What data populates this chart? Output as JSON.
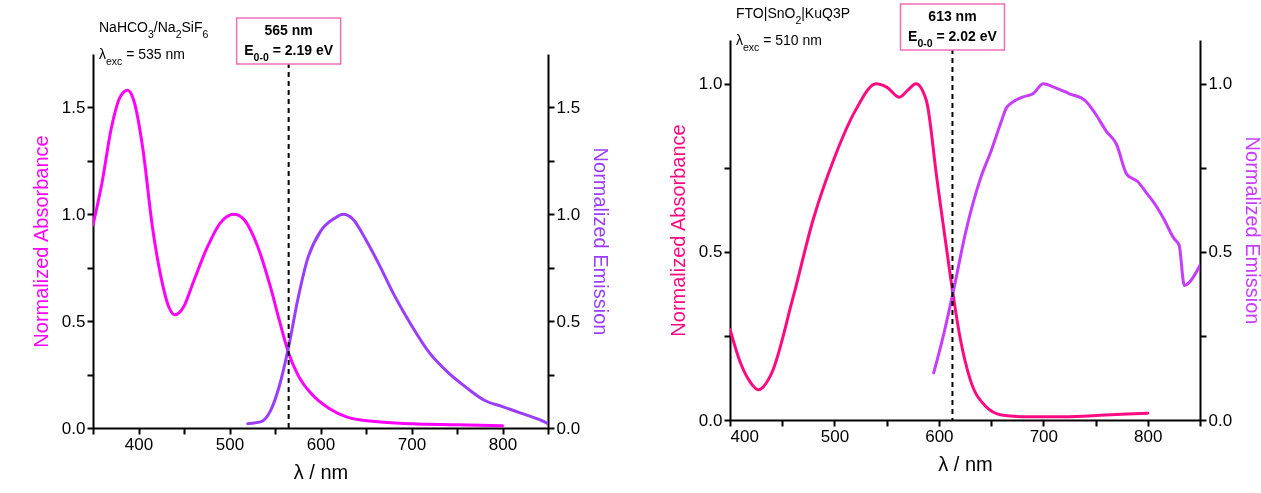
{
  "chart_data": [
    {
      "type": "line",
      "xlabel": "λ / nm",
      "ylabel": "Normalized Absorbance",
      "y2label": "Normalized Emission",
      "xlim": [
        350,
        850
      ],
      "xticks": [
        {
          "value": 350,
          "label": null
        },
        400,
        {
          "value": 450,
          "label": null
        },
        500,
        {
          "value": 550,
          "label": null
        },
        600,
        {
          "value": 650,
          "label": null
        },
        700,
        {
          "value": 750,
          "label": null
        },
        800,
        {
          "value": 850,
          "label": null
        }
      ],
      "ylim": [
        0,
        1.75
      ],
      "yticks": [
        {
          "value": 0,
          "label": "0.0"
        },
        {
          "value": 0.25,
          "label": null
        },
        {
          "value": 0.5,
          "label": "0.5"
        },
        {
          "value": 0.75,
          "label": null
        },
        {
          "value": 1,
          "label": "1.0"
        },
        {
          "value": 1.25,
          "label": null
        },
        {
          "value": 1.5,
          "label": "1.5"
        }
      ],
      "y2lim": [
        0,
        1.75
      ],
      "y2ticks": [
        {
          "value": 0,
          "label": "0.0"
        },
        {
          "value": 0.25,
          "label": null
        },
        {
          "value": 0.5,
          "label": "0.5"
        },
        {
          "value": 0.75,
          "label": null
        },
        {
          "value": 1,
          "label": "1.0"
        },
        {
          "value": 1.25,
          "label": null
        },
        {
          "value": 1.5,
          "label": "1.5"
        }
      ],
      "annotations": [
        "NaHCO$_{3}$/Na$_{2}$SiF$_{6}$",
        "λ$_{exc}$ = 535 nm",
        {
          "text": "E$_{0-0}$ = 2.19 eV",
          "x": 565
        }
      ],
      "ref_lines": [
        {
          "axis": "x",
          "value": 565,
          "label": "565 nm",
          "line_style": "dashed"
        }
      ],
      "series": [
        {
          "color": "#ff00ff",
          "x": [
            350,
            360,
            370,
            380,
            388,
            395,
            405,
            415,
            425,
            433,
            440,
            450,
            460,
            475,
            490,
            505,
            515,
            530,
            545,
            555,
            565,
            575,
            590,
            610,
            630,
            660,
            700,
            750,
            800
          ],
          "values": [
            0.95,
            1.15,
            1.4,
            1.55,
            1.58,
            1.53,
            1.3,
            0.95,
            0.7,
            0.57,
            0.53,
            0.57,
            0.68,
            0.84,
            0.96,
            1.0,
            0.98,
            0.86,
            0.66,
            0.5,
            0.35,
            0.25,
            0.16,
            0.09,
            0.05,
            0.03,
            0.02,
            0.015,
            0.01
          ]
        },
        {
          "color": "#9b3dff",
          "axis": "y2",
          "x": [
            520,
            535,
            545,
            555,
            565,
            575,
            585,
            600,
            615,
            625,
            635,
            650,
            665,
            680,
            700,
            720,
            740,
            760,
            780,
            800,
            820,
            840,
            850
          ],
          "values": [
            0.02,
            0.03,
            0.08,
            0.2,
            0.38,
            0.6,
            0.78,
            0.92,
            0.98,
            1.0,
            0.98,
            0.88,
            0.76,
            0.63,
            0.48,
            0.35,
            0.26,
            0.19,
            0.13,
            0.1,
            0.07,
            0.04,
            0.02
          ]
        }
      ]
    },
    {
      "type": "line",
      "xlabel": "λ / nm",
      "ylabel": "Normalized Absorbance",
      "y2label": "Normalized Emission",
      "xlim": [
        400,
        850
      ],
      "xticks": [
        400,
        {
          "value": 450,
          "label": null
        },
        500,
        {
          "value": 550,
          "label": null
        },
        600,
        {
          "value": 650,
          "label": null
        },
        700,
        {
          "value": 750,
          "label": null
        },
        800,
        {
          "value": 850,
          "label": null
        }
      ],
      "ylim": [
        0,
        1.13
      ],
      "yticks": [
        {
          "value": 0,
          "label": "0.0"
        },
        {
          "value": 0.25,
          "label": null
        },
        0.5,
        {
          "value": 0.75,
          "label": null
        },
        {
          "value": 1,
          "label": "1.0"
        }
      ],
      "y2lim": [
        0,
        1.13
      ],
      "y2ticks": [
        {
          "value": 0,
          "label": "0.0"
        },
        {
          "value": 0.25,
          "label": null
        },
        0.5,
        {
          "value": 0.75,
          "label": null
        },
        {
          "value": 1,
          "label": "1.0"
        }
      ],
      "annotations": [
        "FTO|SnO$_{2}$|KuQ3P",
        "λ$_{exc}$ = 510 nm",
        {
          "text": "E$_{0-0}$ = 2.02 eV",
          "x": 613
        }
      ],
      "ref_lines": [
        {
          "axis": "x",
          "value": 613,
          "label": "613 nm",
          "line_style": "dashed"
        }
      ],
      "series": [
        {
          "color": "#ff0a82",
          "x": [
            400,
            410,
            420,
            427,
            440,
            460,
            480,
            500,
            520,
            540,
            550,
            562,
            570,
            578,
            588,
            598,
            610,
            620,
            630,
            645,
            660,
            680,
            720,
            760,
            800
          ],
          "values": [
            0.27,
            0.17,
            0.11,
            0.09,
            0.14,
            0.36,
            0.6,
            0.78,
            0.92,
            1.0,
            0.99,
            0.96,
            0.98,
            1.0,
            0.95,
            0.72,
            0.45,
            0.25,
            0.12,
            0.04,
            0.015,
            0.01,
            0.01,
            0.015,
            0.02
          ]
        },
        {
          "color": "#c83cff",
          "axis": "y2",
          "x": [
            595,
            605,
            615,
            625,
            640,
            650,
            660,
            665,
            680,
            690,
            700,
            710,
            725,
            740,
            750,
            760,
            770,
            780,
            790,
            800,
            805,
            815,
            825,
            830,
            835,
            840,
            850
          ],
          "values": [
            0.14,
            0.26,
            0.4,
            0.55,
            0.72,
            0.8,
            0.89,
            0.93,
            0.96,
            0.97,
            1.0,
            0.99,
            0.97,
            0.95,
            0.91,
            0.86,
            0.82,
            0.73,
            0.71,
            0.67,
            0.65,
            0.6,
            0.54,
            0.52,
            0.4,
            0.41,
            0.46
          ]
        }
      ]
    }
  ]
}
